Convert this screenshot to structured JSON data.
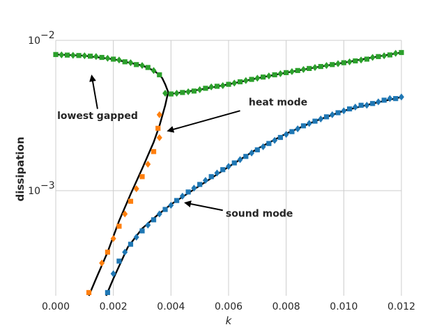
{
  "chart_data": {
    "type": "line",
    "xlabel": "k",
    "ylabel": "dissipation",
    "xlim": [
      0.0,
      0.012
    ],
    "ylim": [
      0.0002,
      0.01
    ],
    "yscale": "log",
    "grid": true,
    "xticks": [
      0.0,
      0.002,
      0.004,
      0.006,
      0.008,
      0.01,
      0.012
    ],
    "xtick_labels": [
      "0.000",
      "0.002",
      "0.004",
      "0.006",
      "0.008",
      "0.010",
      "0.012"
    ],
    "ytick_labels": [
      {
        "value": 0.01,
        "base": "10",
        "exp": "−2"
      },
      {
        "value": 0.001,
        "base": "10",
        "exp": "−3"
      }
    ],
    "theory_curves": [
      {
        "x": [
          0.0,
          0.001,
          0.002,
          0.003,
          0.0034,
          0.0036,
          0.0037,
          0.0038,
          0.0039,
          0.004,
          0.005,
          0.006,
          0.007,
          0.008,
          0.009,
          0.01,
          0.011,
          0.012
        ],
        "y": [
          0.00805,
          0.0079,
          0.0075,
          0.0068,
          0.0063,
          0.0059,
          0.0056,
          0.0051,
          0.00455,
          0.0044,
          0.0047,
          0.0051,
          0.0056,
          0.0061,
          0.0066,
          0.0071,
          0.0077,
          0.0083
        ]
      },
      {
        "x": [
          0.00115,
          0.0014,
          0.0018,
          0.0022,
          0.0026,
          0.003,
          0.0034,
          0.0036,
          0.0038,
          0.0039
        ],
        "y": [
          0.0002,
          0.00026,
          0.00039,
          0.00063,
          0.00095,
          0.0014,
          0.0021,
          0.0027,
          0.0037,
          0.0045
        ]
      },
      {
        "x": [
          0.00175,
          0.002,
          0.0025,
          0.003,
          0.0035,
          0.004,
          0.005,
          0.006,
          0.007,
          0.008,
          0.009,
          0.01,
          0.011,
          0.012
        ],
        "y": [
          0.0002,
          0.00026,
          0.00042,
          0.00056,
          0.00068,
          0.00081,
          0.00108,
          0.00144,
          0.0019,
          0.0024,
          0.0029,
          0.0034,
          0.0038,
          0.0042
        ]
      }
    ],
    "series": [
      {
        "color": "#2ca02c",
        "points": [
          [
            0.0,
            0.00805
          ],
          [
            0.0002,
            0.008
          ],
          [
            0.0004,
            0.00798
          ],
          [
            0.0006,
            0.00795
          ],
          [
            0.0008,
            0.00793
          ],
          [
            0.001,
            0.0079
          ],
          [
            0.0012,
            0.00785
          ],
          [
            0.0014,
            0.0078
          ],
          [
            0.0016,
            0.0077
          ],
          [
            0.0018,
            0.0076
          ],
          [
            0.002,
            0.0075
          ],
          [
            0.0022,
            0.0074
          ],
          [
            0.0024,
            0.0072
          ],
          [
            0.0026,
            0.0071
          ],
          [
            0.0028,
            0.0069
          ],
          [
            0.003,
            0.0068
          ],
          [
            0.0032,
            0.0066
          ],
          [
            0.0034,
            0.0063
          ],
          [
            0.0036,
            0.0059
          ],
          [
            0.0038,
            0.00445
          ],
          [
            0.004,
            0.0044
          ],
          [
            0.0042,
            0.00445
          ],
          [
            0.0044,
            0.0045
          ],
          [
            0.0046,
            0.00455
          ],
          [
            0.0048,
            0.0046
          ],
          [
            0.005,
            0.0047
          ],
          [
            0.0052,
            0.0048
          ],
          [
            0.0054,
            0.0049
          ],
          [
            0.0056,
            0.00495
          ],
          [
            0.0058,
            0.005
          ],
          [
            0.006,
            0.0051
          ],
          [
            0.0062,
            0.0052
          ],
          [
            0.0064,
            0.0053
          ],
          [
            0.0066,
            0.0054
          ],
          [
            0.0068,
            0.0055
          ],
          [
            0.007,
            0.0056
          ],
          [
            0.0072,
            0.0057
          ],
          [
            0.0074,
            0.0058
          ],
          [
            0.0076,
            0.0059
          ],
          [
            0.0078,
            0.006
          ],
          [
            0.008,
            0.0061
          ],
          [
            0.0082,
            0.0062
          ],
          [
            0.0084,
            0.0063
          ],
          [
            0.0086,
            0.0064
          ],
          [
            0.0088,
            0.0065
          ],
          [
            0.009,
            0.0066
          ],
          [
            0.0092,
            0.0067
          ],
          [
            0.0094,
            0.0068
          ],
          [
            0.0096,
            0.0069
          ],
          [
            0.0098,
            0.007
          ],
          [
            0.01,
            0.0071
          ],
          [
            0.0102,
            0.0072
          ],
          [
            0.0104,
            0.0073
          ],
          [
            0.0106,
            0.0074
          ],
          [
            0.0108,
            0.0075
          ],
          [
            0.011,
            0.0077
          ],
          [
            0.0112,
            0.0078
          ],
          [
            0.0114,
            0.0079
          ],
          [
            0.0116,
            0.008
          ],
          [
            0.0118,
            0.0082
          ],
          [
            0.012,
            0.0083
          ]
        ]
      },
      {
        "color": "#ff7f0e",
        "points": [
          [
            0.00115,
            0.00021
          ],
          [
            0.0016,
            0.00033
          ],
          [
            0.0018,
            0.00039
          ],
          [
            0.002,
            0.00048
          ],
          [
            0.0022,
            0.00058
          ],
          [
            0.0024,
            0.0007
          ],
          [
            0.0026,
            0.00085
          ],
          [
            0.0028,
            0.00103
          ],
          [
            0.003,
            0.00124
          ],
          [
            0.0032,
            0.0015
          ],
          [
            0.0034,
            0.00182
          ],
          [
            0.0036,
            0.00225
          ],
          [
            0.00355,
            0.0026
          ],
          [
            0.0036,
            0.0032
          ]
        ]
      },
      {
        "color": "#1f77b4",
        "points": [
          [
            0.0018,
            0.00021
          ],
          [
            0.002,
            0.00028
          ],
          [
            0.0022,
            0.00034
          ],
          [
            0.0024,
            0.00039
          ],
          [
            0.0026,
            0.00044
          ],
          [
            0.0028,
            0.00049
          ],
          [
            0.003,
            0.00054
          ],
          [
            0.0032,
            0.00059
          ],
          [
            0.0034,
            0.00064
          ],
          [
            0.0036,
            0.0007
          ],
          [
            0.0038,
            0.00075
          ],
          [
            0.004,
            0.0008
          ],
          [
            0.0042,
            0.00086
          ],
          [
            0.0044,
            0.00092
          ],
          [
            0.0046,
            0.00098
          ],
          [
            0.0048,
            0.00104
          ],
          [
            0.005,
            0.0011
          ],
          [
            0.0052,
            0.00117
          ],
          [
            0.0054,
            0.00124
          ],
          [
            0.0056,
            0.00131
          ],
          [
            0.0058,
            0.00138
          ],
          [
            0.006,
            0.00145
          ],
          [
            0.0062,
            0.00153
          ],
          [
            0.0064,
            0.00161
          ],
          [
            0.0066,
            0.00169
          ],
          [
            0.0068,
            0.00178
          ],
          [
            0.007,
            0.00187
          ],
          [
            0.0072,
            0.00196
          ],
          [
            0.0074,
            0.00206
          ],
          [
            0.0076,
            0.00216
          ],
          [
            0.0078,
            0.00226
          ],
          [
            0.008,
            0.00237
          ],
          [
            0.0082,
            0.00247
          ],
          [
            0.0084,
            0.00258
          ],
          [
            0.0086,
            0.0027
          ],
          [
            0.0088,
            0.0028
          ],
          [
            0.009,
            0.0029
          ],
          [
            0.0092,
            0.003
          ],
          [
            0.0094,
            0.0031
          ],
          [
            0.0096,
            0.0032
          ],
          [
            0.0098,
            0.0033
          ],
          [
            0.01,
            0.0034
          ],
          [
            0.0102,
            0.0035
          ],
          [
            0.0104,
            0.0036
          ],
          [
            0.0106,
            0.0037
          ],
          [
            0.0108,
            0.0037
          ],
          [
            0.011,
            0.0038
          ],
          [
            0.0112,
            0.0039
          ],
          [
            0.0114,
            0.004
          ],
          [
            0.0116,
            0.0041
          ],
          [
            0.0118,
            0.0041
          ],
          [
            0.012,
            0.0042
          ]
        ]
      }
    ],
    "annotations": [
      {
        "text": "lowest gapped",
        "text_x": 5e-05,
        "text_y": 0.003,
        "arrow_from_x": 0.00145,
        "arrow_from_y": 0.0035,
        "arrow_to_x": 0.00125,
        "arrow_to_y": 0.0058
      },
      {
        "text": "heat mode",
        "text_x": 0.0067,
        "text_y": 0.0037,
        "arrow_from_x": 0.0064,
        "arrow_from_y": 0.0034,
        "arrow_to_x": 0.0039,
        "arrow_to_y": 0.0025
      },
      {
        "text": "sound mode",
        "text_x": 0.0059,
        "text_y": 0.00067,
        "arrow_from_x": 0.0058,
        "arrow_from_y": 0.00074,
        "arrow_to_x": 0.0045,
        "arrow_to_y": 0.00083
      }
    ]
  }
}
